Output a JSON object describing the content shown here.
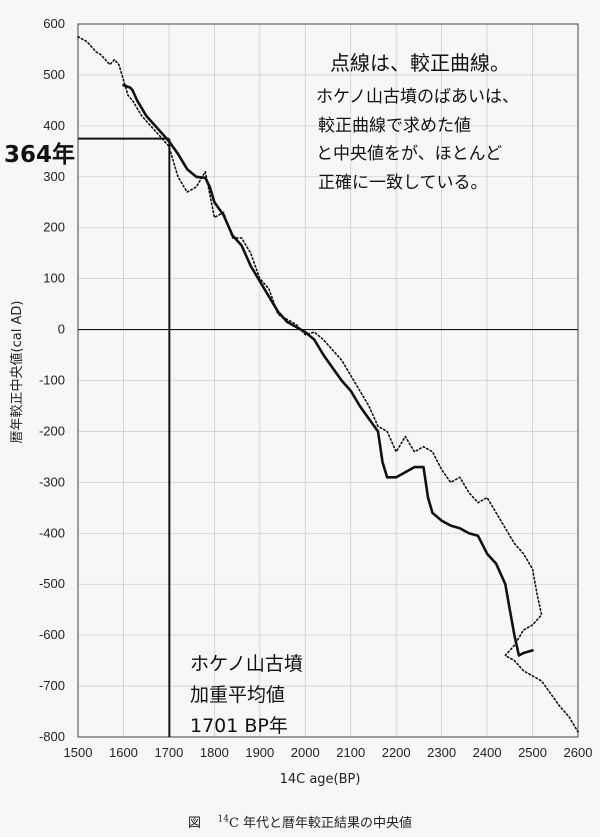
{
  "chart_data": {
    "type": "line",
    "xlabel": "14C age(BP)",
    "ylabel": "暦年較正中央値(cal AD)",
    "xlim": [
      1500,
      2600
    ],
    "ylim": [
      -800,
      600
    ],
    "x_ticks": [
      1500,
      1600,
      1700,
      1800,
      1900,
      2000,
      2100,
      2200,
      2300,
      2400,
      2500,
      2600
    ],
    "y_ticks": [
      600,
      500,
      400,
      300,
      200,
      100,
      0,
      -100,
      -200,
      -300,
      -400,
      -500,
      -600,
      -700,
      -800
    ],
    "grid": true,
    "series": [
      {
        "style": "solid",
        "x": [
          1600,
          1615,
          1620,
          1630,
          1650,
          1670,
          1700,
          1720,
          1740,
          1760,
          1780,
          1790,
          1800,
          1820,
          1840,
          1860,
          1880,
          1900,
          1920,
          1940,
          1960,
          1980,
          2000,
          2020,
          2040,
          2060,
          2080,
          2100,
          2120,
          2140,
          2160,
          2170,
          2180,
          2200,
          2220,
          2240,
          2260,
          2270,
          2280,
          2300,
          2320,
          2340,
          2360,
          2380,
          2400,
          2420,
          2440,
          2450,
          2460,
          2470,
          2480,
          2500
        ],
        "y": [
          480,
          475,
          470,
          450,
          420,
          400,
          370,
          345,
          315,
          300,
          298,
          280,
          250,
          225,
          185,
          165,
          125,
          95,
          65,
          35,
          15,
          5,
          -5,
          -20,
          -50,
          -75,
          -100,
          -120,
          -150,
          -175,
          -200,
          -260,
          -290,
          -290,
          -280,
          -270,
          -270,
          -330,
          -360,
          -375,
          -385,
          -390,
          -400,
          -405,
          -440,
          -460,
          -500,
          -550,
          -600,
          -640,
          -635,
          -630
        ]
      },
      {
        "style": "dotted",
        "x": [
          1500,
          1520,
          1540,
          1550,
          1560,
          1570,
          1580,
          1590,
          1600,
          1610,
          1620,
          1640,
          1660,
          1680,
          1700,
          1720,
          1740,
          1760,
          1780,
          1800,
          1820,
          1840,
          1860,
          1880,
          1900,
          1920,
          1940,
          1960,
          1980,
          2000,
          2020,
          2040,
          2060,
          2080,
          2100,
          2120,
          2140,
          2160,
          2180,
          2200,
          2220,
          2240,
          2260,
          2280,
          2300,
          2320,
          2340,
          2360,
          2380,
          2400,
          2420,
          2440,
          2460,
          2480,
          2500,
          2510,
          2520,
          2500,
          2480,
          2460,
          2440,
          2460,
          2480,
          2520,
          2560,
          2580,
          2600
        ],
        "y": [
          575,
          565,
          545,
          540,
          530,
          520,
          530,
          520,
          490,
          460,
          450,
          420,
          400,
          380,
          360,
          300,
          270,
          280,
          310,
          220,
          230,
          180,
          180,
          150,
          100,
          80,
          30,
          20,
          10,
          -10,
          -5,
          -20,
          -40,
          -60,
          -90,
          -120,
          -150,
          -190,
          -200,
          -240,
          -210,
          -240,
          -230,
          -240,
          -275,
          -300,
          -290,
          -320,
          -340,
          -330,
          -360,
          -390,
          -420,
          -440,
          -470,
          -520,
          -560,
          -580,
          -590,
          -620,
          -640,
          -650,
          -670,
          -690,
          -740,
          -760,
          -790
        ]
      }
    ],
    "annotations": [
      {
        "type": "hline",
        "y": 375,
        "x_start": 1500,
        "x_end": 1700,
        "label": "364年"
      },
      {
        "type": "vline",
        "x": 1701,
        "y_start": 375,
        "y_end": -800
      },
      {
        "type": "note",
        "lines": [
          "点線は、較正曲線。",
          "ホケノ山古墳のばあいは、",
          "較正曲線で求めた値",
          "と中央値をが、ほとんど",
          "正確に一致している。"
        ]
      },
      {
        "type": "note",
        "lines": [
          "ホケノ山古墳",
          "加重平均値",
          "1701 BP年"
        ]
      }
    ]
  },
  "caption": {
    "prefix": "図",
    "superscript": "14",
    "text": "C 年代と暦年較正結果の中央値"
  }
}
